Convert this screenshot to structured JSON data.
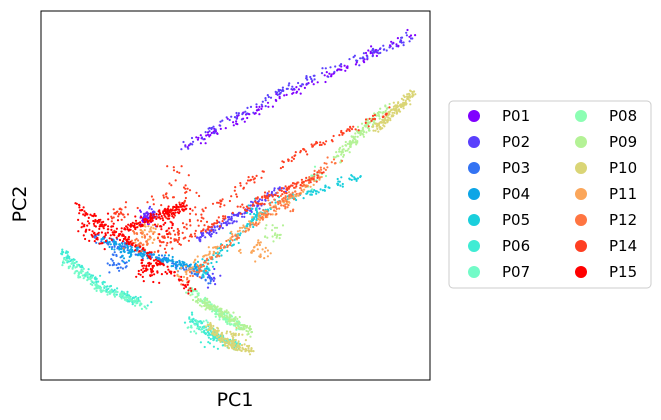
{
  "chart_data": {
    "type": "scatter",
    "title": "",
    "xlabel": "PC1",
    "ylabel": "PC2",
    "xlim": [
      0,
      100
    ],
    "ylim": [
      0,
      100
    ],
    "xticks": false,
    "yticks": false,
    "grid": false,
    "legend": {
      "placement": "right",
      "columns": 2
    },
    "series": [
      {
        "name": "P01",
        "color": "#8000ff",
        "segments": [
          [
            [
              36,
              63
            ],
            [
              65,
              78
            ],
            [
              96,
              94
            ]
          ]
        ],
        "extras": [
          [
            27,
            44,
            2.5,
            2.5,
            35
          ]
        ]
      },
      {
        "name": "P02",
        "color": "#5a40fc",
        "segments": [
          [
            [
              36,
              63
            ],
            [
              65,
              80
            ],
            [
              95,
              93
            ]
          ],
          [
            [
              40,
              38
            ],
            [
              50,
              44
            ],
            [
              62,
              52
            ]
          ]
        ],
        "extras": [
          [
            28,
            45,
            2.5,
            2.5,
            25
          ],
          [
            44,
            28,
            3,
            3,
            15
          ]
        ]
      },
      {
        "name": "P03",
        "color": "#3373f3",
        "segments": [
          [
            [
              14,
              39
            ],
            [
              28,
              34
            ],
            [
              44,
              27
            ]
          ]
        ],
        "extras": [
          [
            20,
            32,
            3,
            3,
            30
          ]
        ]
      },
      {
        "name": "P04",
        "color": "#0da5e6",
        "segments": [
          [
            [
              15,
              38
            ],
            [
              30,
              33
            ],
            [
              42,
              30
            ]
          ]
        ],
        "extras": [
          [
            22,
            35,
            3,
            3,
            25
          ]
        ]
      },
      {
        "name": "P05",
        "color": "#1acfdc",
        "segments": [
          [
            [
              44,
              33
            ],
            [
              60,
              48
            ],
            [
              82,
              55
            ]
          ]
        ],
        "extras": [
          [
            42,
            30,
            3,
            3,
            30
          ],
          [
            55,
            45,
            3,
            3,
            25
          ]
        ]
      },
      {
        "name": "P06",
        "color": "#40ecd4",
        "segments": [
          [
            [
              5,
              35
            ],
            [
              15,
              26
            ],
            [
              28,
              20
            ]
          ],
          [
            [
              38,
              17
            ],
            [
              45,
              12
            ],
            [
              51,
              9
            ]
          ]
        ],
        "extras": [
          [
            44,
            11,
            3,
            3,
            20
          ]
        ]
      },
      {
        "name": "P07",
        "color": "#73fbc8",
        "segments": [
          [
            [
              6,
              33
            ],
            [
              15,
              25
            ],
            [
              27,
              20
            ]
          ]
        ],
        "extras": [
          [
            40,
            15,
            3,
            3,
            20
          ]
        ]
      },
      {
        "name": "P08",
        "color": "#8cfeb3",
        "segments": [
          [
            [
              38,
              25
            ],
            [
              46,
              18
            ],
            [
              52,
              14
            ]
          ]
        ],
        "extras": [
          [
            70,
            55,
            3,
            3,
            15
          ]
        ]
      },
      {
        "name": "P09",
        "color": "#b4f296",
        "segments": [
          [
            [
              40,
              22
            ],
            [
              47,
              18
            ],
            [
              54,
              13
            ]
          ],
          [
            [
              76,
              60
            ],
            [
              82,
              67
            ],
            [
              89,
              74
            ]
          ]
        ],
        "extras": [
          [
            60,
            40,
            3,
            3,
            20
          ]
        ]
      },
      {
        "name": "P10",
        "color": "#dad576",
        "segments": [
          [
            [
              43,
              15
            ],
            [
              48,
              10
            ],
            [
              54,
              8
            ]
          ],
          [
            [
              86,
              68
            ],
            [
              91,
              73
            ],
            [
              96,
              78
            ]
          ]
        ],
        "extras": [
          [
            50,
            12,
            2,
            2,
            20
          ]
        ]
      },
      {
        "name": "P11",
        "color": "#fba65a",
        "segments": [
          [
            [
              35,
              28
            ],
            [
              55,
              43
            ],
            [
              72,
              55
            ]
          ]
        ],
        "extras": [
          [
            28,
            40,
            4,
            4,
            40
          ],
          [
            55,
            35,
            4,
            4,
            30
          ]
        ]
      },
      {
        "name": "P12",
        "color": "#ff7541",
        "segments": [
          [
            [
              36,
              26
            ],
            [
              58,
              45
            ],
            [
              76,
              60
            ]
          ]
        ],
        "extras": [
          [
            25,
            38,
            4,
            4,
            40
          ],
          [
            62,
            48,
            4,
            4,
            30
          ]
        ]
      },
      {
        "name": "P14",
        "color": "#ff3f22",
        "segments": [
          [
            [
              30,
              37
            ],
            [
              60,
              58
            ],
            [
              90,
              73
            ]
          ],
          [
            [
              30,
              35
            ],
            [
              55,
              48
            ],
            [
              72,
              56
            ]
          ]
        ],
        "extras": [
          [
            35,
            50,
            8,
            10,
            60
          ],
          [
            20,
            45,
            4,
            4,
            30
          ]
        ]
      },
      {
        "name": "P15",
        "color": "#ff0000",
        "segments": [
          [
            [
              9,
              47
            ],
            [
              22,
              38
            ],
            [
              40,
              24
            ]
          ],
          [
            [
              22,
              41
            ],
            [
              31,
              45
            ],
            [
              37,
              47
            ]
          ]
        ],
        "extras": [
          [
            15,
            40,
            5,
            5,
            60
          ],
          [
            28,
            30,
            4,
            4,
            50
          ],
          [
            32,
            42,
            4,
            4,
            25
          ]
        ]
      }
    ]
  }
}
